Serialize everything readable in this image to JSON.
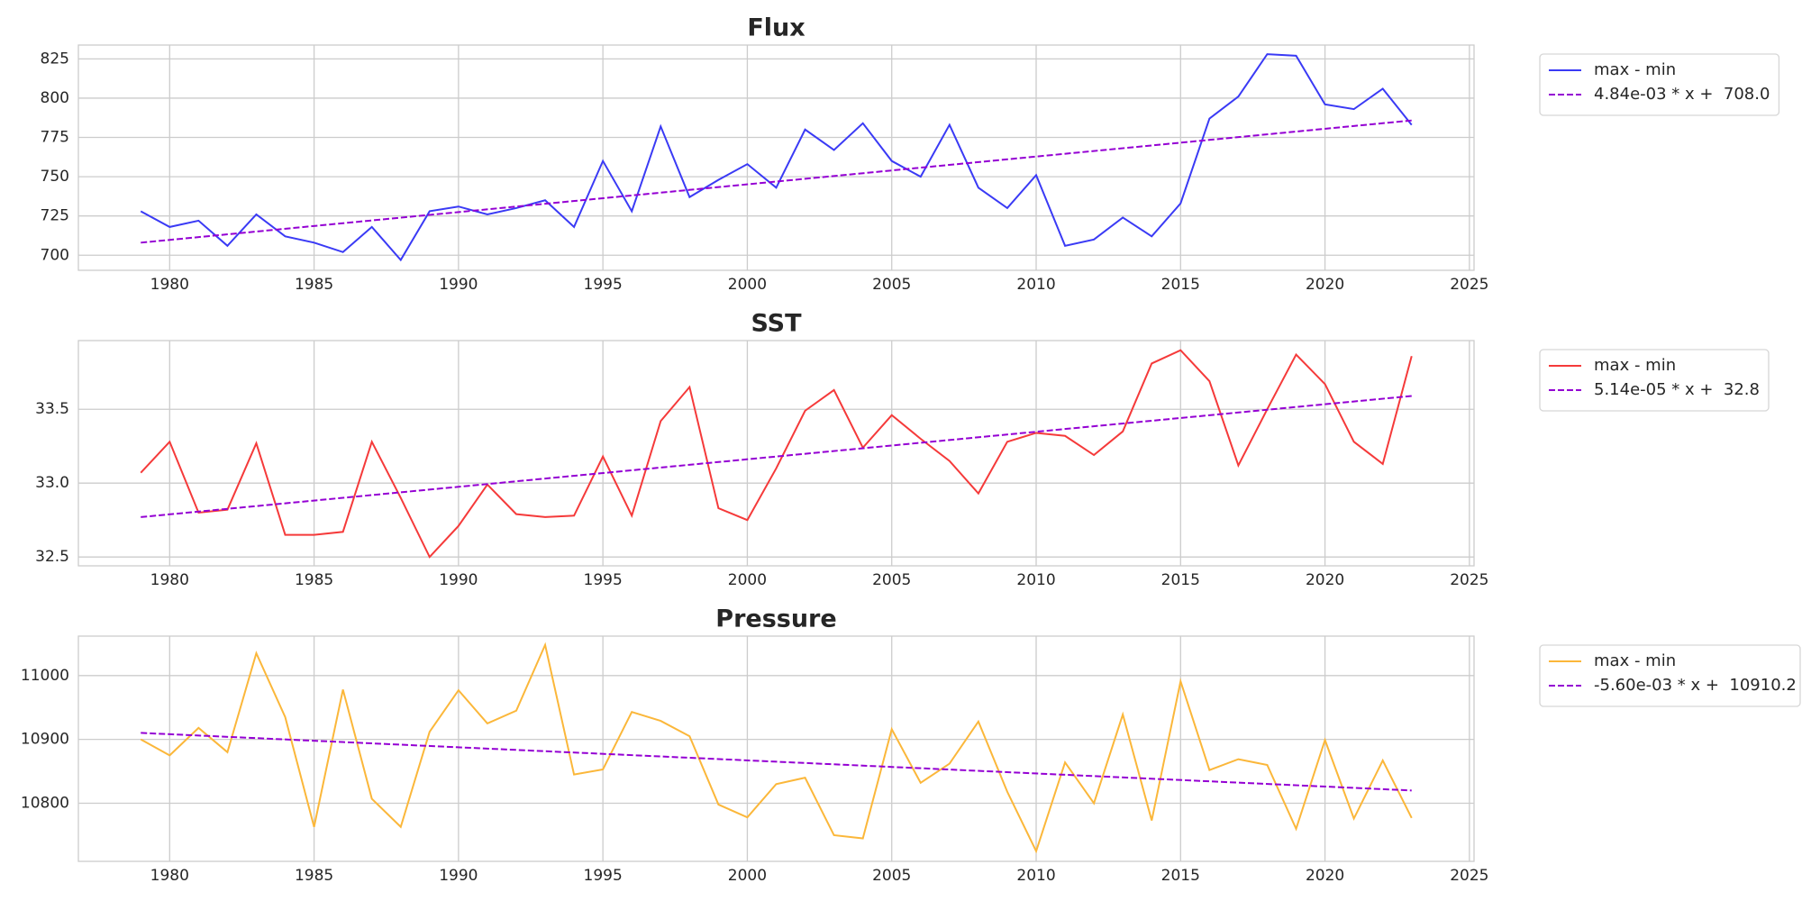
{
  "chart_data": [
    {
      "type": "line",
      "title": "Flux",
      "x": [
        1979,
        1980,
        1981,
        1982,
        1983,
        1984,
        1985,
        1986,
        1987,
        1988,
        1989,
        1990,
        1991,
        1992,
        1993,
        1994,
        1995,
        1996,
        1997,
        1998,
        1999,
        2000,
        2001,
        2002,
        2003,
        2004,
        2005,
        2006,
        2007,
        2008,
        2009,
        2010,
        2011,
        2012,
        2013,
        2014,
        2015,
        2016,
        2017,
        2018,
        2019,
        2020,
        2021,
        2022,
        2023
      ],
      "series": [
        {
          "name": "max - min",
          "color": "#3a3af5",
          "values": [
            728,
            718,
            722,
            706,
            726,
            712,
            708,
            702,
            718,
            697,
            728,
            731,
            726,
            730,
            735,
            718,
            760,
            728,
            782,
            737,
            748,
            758,
            743,
            780,
            767,
            784,
            760,
            750,
            783,
            743,
            730,
            751,
            706,
            710,
            724,
            712,
            733,
            787,
            801,
            828,
            827,
            796,
            793,
            806,
            783
          ]
        },
        {
          "name": "4.84e-03 * x +  708.0",
          "color": "#9400d3",
          "linestyle": "--",
          "x": [
            1979,
            2023
          ],
          "values": [
            708.0,
            785.8
          ]
        }
      ],
      "xlim": [
        1976.84,
        2025.16
      ],
      "xticks": [
        1980,
        1985,
        1990,
        1995,
        2000,
        2005,
        2010,
        2015,
        2020,
        2025
      ],
      "ylim": [
        690.4,
        833.8
      ],
      "yticks": [
        700,
        725,
        750,
        775,
        800,
        825
      ],
      "grid": true,
      "legend": "outside right"
    },
    {
      "type": "line",
      "title": "SST",
      "x": [
        1979,
        1980,
        1981,
        1982,
        1983,
        1984,
        1985,
        1986,
        1987,
        1988,
        1989,
        1990,
        1991,
        1992,
        1993,
        1994,
        1995,
        1996,
        1997,
        1998,
        1999,
        2000,
        2001,
        2002,
        2003,
        2004,
        2005,
        2006,
        2007,
        2008,
        2009,
        2010,
        2011,
        2012,
        2013,
        2014,
        2015,
        2016,
        2017,
        2018,
        2019,
        2020,
        2021,
        2022,
        2023
      ],
      "series": [
        {
          "name": "max - min",
          "color": "#f53a3a",
          "values": [
            33.07,
            33.28,
            32.8,
            32.82,
            33.27,
            32.65,
            32.65,
            32.67,
            33.28,
            32.9,
            32.5,
            32.71,
            32.99,
            32.79,
            32.77,
            32.78,
            33.18,
            32.78,
            33.42,
            33.65,
            32.83,
            32.75,
            33.1,
            33.49,
            33.63,
            33.24,
            33.46,
            33.3,
            33.15,
            32.93,
            33.28,
            33.34,
            33.32,
            33.19,
            33.35,
            33.81,
            33.9,
            33.69,
            33.12,
            33.5,
            33.87,
            33.67,
            33.28,
            33.13,
            33.86
          ]
        },
        {
          "name": "5.14e-05 * x +  32.8",
          "color": "#9400d3",
          "linestyle": "--",
          "x": [
            1979,
            2023
          ],
          "values": [
            32.77,
            33.59
          ]
        }
      ],
      "xlim": [
        1976.84,
        2025.16
      ],
      "xticks": [
        1980,
        1985,
        1990,
        1995,
        2000,
        2005,
        2010,
        2015,
        2020,
        2025
      ],
      "ylim": [
        32.44,
        33.965
      ],
      "yticks": [
        {
          "value": 32.5,
          "label": "32.5"
        },
        {
          "value": 33,
          "label": "33.0"
        },
        {
          "value": 33.5,
          "label": "33.5"
        }
      ],
      "grid": true,
      "legend": "outside right"
    },
    {
      "type": "line",
      "title": "Pressure",
      "x": [
        1979,
        1980,
        1981,
        1982,
        1983,
        1984,
        1985,
        1986,
        1987,
        1988,
        1989,
        1990,
        1991,
        1992,
        1993,
        1994,
        1995,
        1996,
        1997,
        1998,
        1999,
        2000,
        2001,
        2002,
        2003,
        2004,
        2005,
        2006,
        2007,
        2008,
        2009,
        2010,
        2011,
        2012,
        2013,
        2014,
        2015,
        2016,
        2017,
        2018,
        2019,
        2020,
        2021,
        2022,
        2023
      ],
      "series": [
        {
          "name": "max - min",
          "color": "#fbb73a",
          "values": [
            10900,
            10875,
            10918,
            10880,
            11035,
            10935,
            10763,
            10978,
            10807,
            10763,
            10912,
            10977,
            10925,
            10945,
            11048,
            10845,
            10853,
            10943,
            10929,
            10905,
            10798,
            10778,
            10830,
            10840,
            10750,
            10745,
            10916,
            10832,
            10862,
            10928,
            10818,
            10725,
            10864,
            10800,
            10939,
            10773,
            10991,
            10852,
            10869,
            10860,
            10760,
            10899,
            10776,
            10867,
            10777
          ]
        },
        {
          "name": "-5.60e-03 * x +  10910.2",
          "color": "#9400d3",
          "linestyle": "--",
          "x": [
            1979,
            2023
          ],
          "values": [
            10910.2,
            10820
          ]
        }
      ],
      "xlim": [
        1976.84,
        2025.16
      ],
      "xticks": [
        1980,
        1985,
        1990,
        1995,
        2000,
        2005,
        2010,
        2015,
        2020,
        2025
      ],
      "ylim": [
        10709,
        11061.8
      ],
      "yticks": [
        10800,
        10900,
        11000
      ],
      "grid": true,
      "legend": "outside right"
    }
  ]
}
